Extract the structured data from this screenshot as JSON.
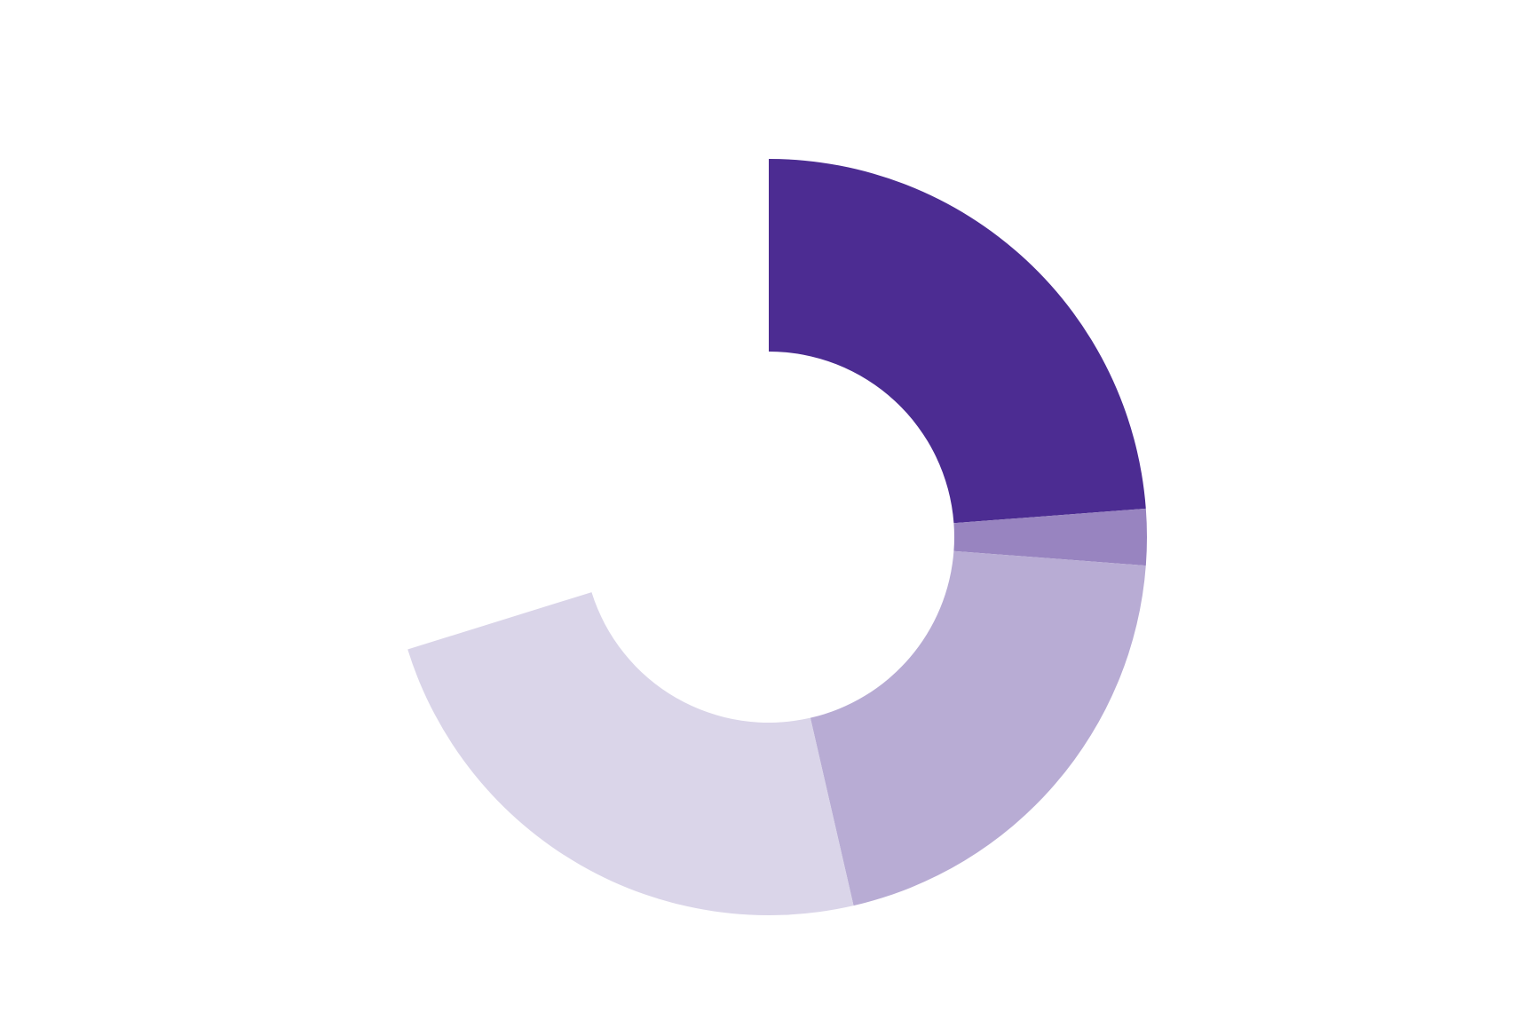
{
  "chart_data": {
    "type": "donut",
    "values": [
      23.8,
      2.4,
      20.2,
      23.8
    ],
    "colors": [
      "#4c2c92",
      "#9884c0",
      "#b8acd4",
      "#dad5e9"
    ],
    "total": 100
  }
}
